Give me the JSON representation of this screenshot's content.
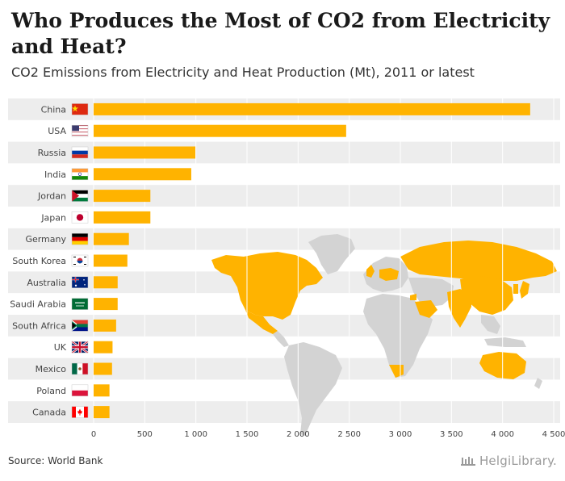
{
  "header": {
    "title": "Who Produces the Most of CO2 from Electricity and Heat?",
    "subtitle": "CO2 Emissions from Electricity and Heat Production (Mt), 2011 or latest"
  },
  "footer": {
    "source": "Source: World Bank",
    "logo": "HelgiLibrary."
  },
  "colors": {
    "bar": "#FFB300",
    "row_band": "#EDEDED",
    "grid": "#FFFFFF",
    "map_highlight": "#FFB300",
    "map_other": "#D3D3D3"
  },
  "chart_data": {
    "type": "bar",
    "orientation": "horizontal",
    "title": "Who Produces the Most of CO2 from Electricity and Heat?",
    "subtitle": "CO2 Emissions from Electricity and Heat Production (Mt), 2011 or latest",
    "xlabel": "",
    "ylabel": "",
    "xlim": [
      0,
      4500
    ],
    "ticks": [
      0,
      500,
      1000,
      1500,
      2000,
      2500,
      3000,
      3500,
      4000,
      4500
    ],
    "tick_labels": [
      "0",
      "500",
      "1 000",
      "1 500",
      "2 000",
      "2 500",
      "3 000",
      "3 500",
      "4 000",
      "4 500"
    ],
    "categories": [
      "China",
      "USA",
      "Russia",
      "India",
      "Jordan",
      "Japan",
      "Germany",
      "South Korea",
      "Australia",
      "Saudi Arabia",
      "South Africa",
      "UK",
      "Mexico",
      "Poland",
      "Canada"
    ],
    "flags": [
      "china-flag",
      "usa-flag",
      "russia-flag",
      "india-flag",
      "jordan-flag",
      "japan-flag",
      "germany-flag",
      "south-korea-flag",
      "australia-flag",
      "saudi-arabia-flag",
      "south-africa-flag",
      "uk-flag",
      "mexico-flag",
      "poland-flag",
      "canada-flag"
    ],
    "values": [
      4270,
      2470,
      995,
      955,
      555,
      555,
      345,
      330,
      235,
      235,
      220,
      185,
      180,
      155,
      155
    ],
    "grid": true,
    "legend": "none"
  }
}
